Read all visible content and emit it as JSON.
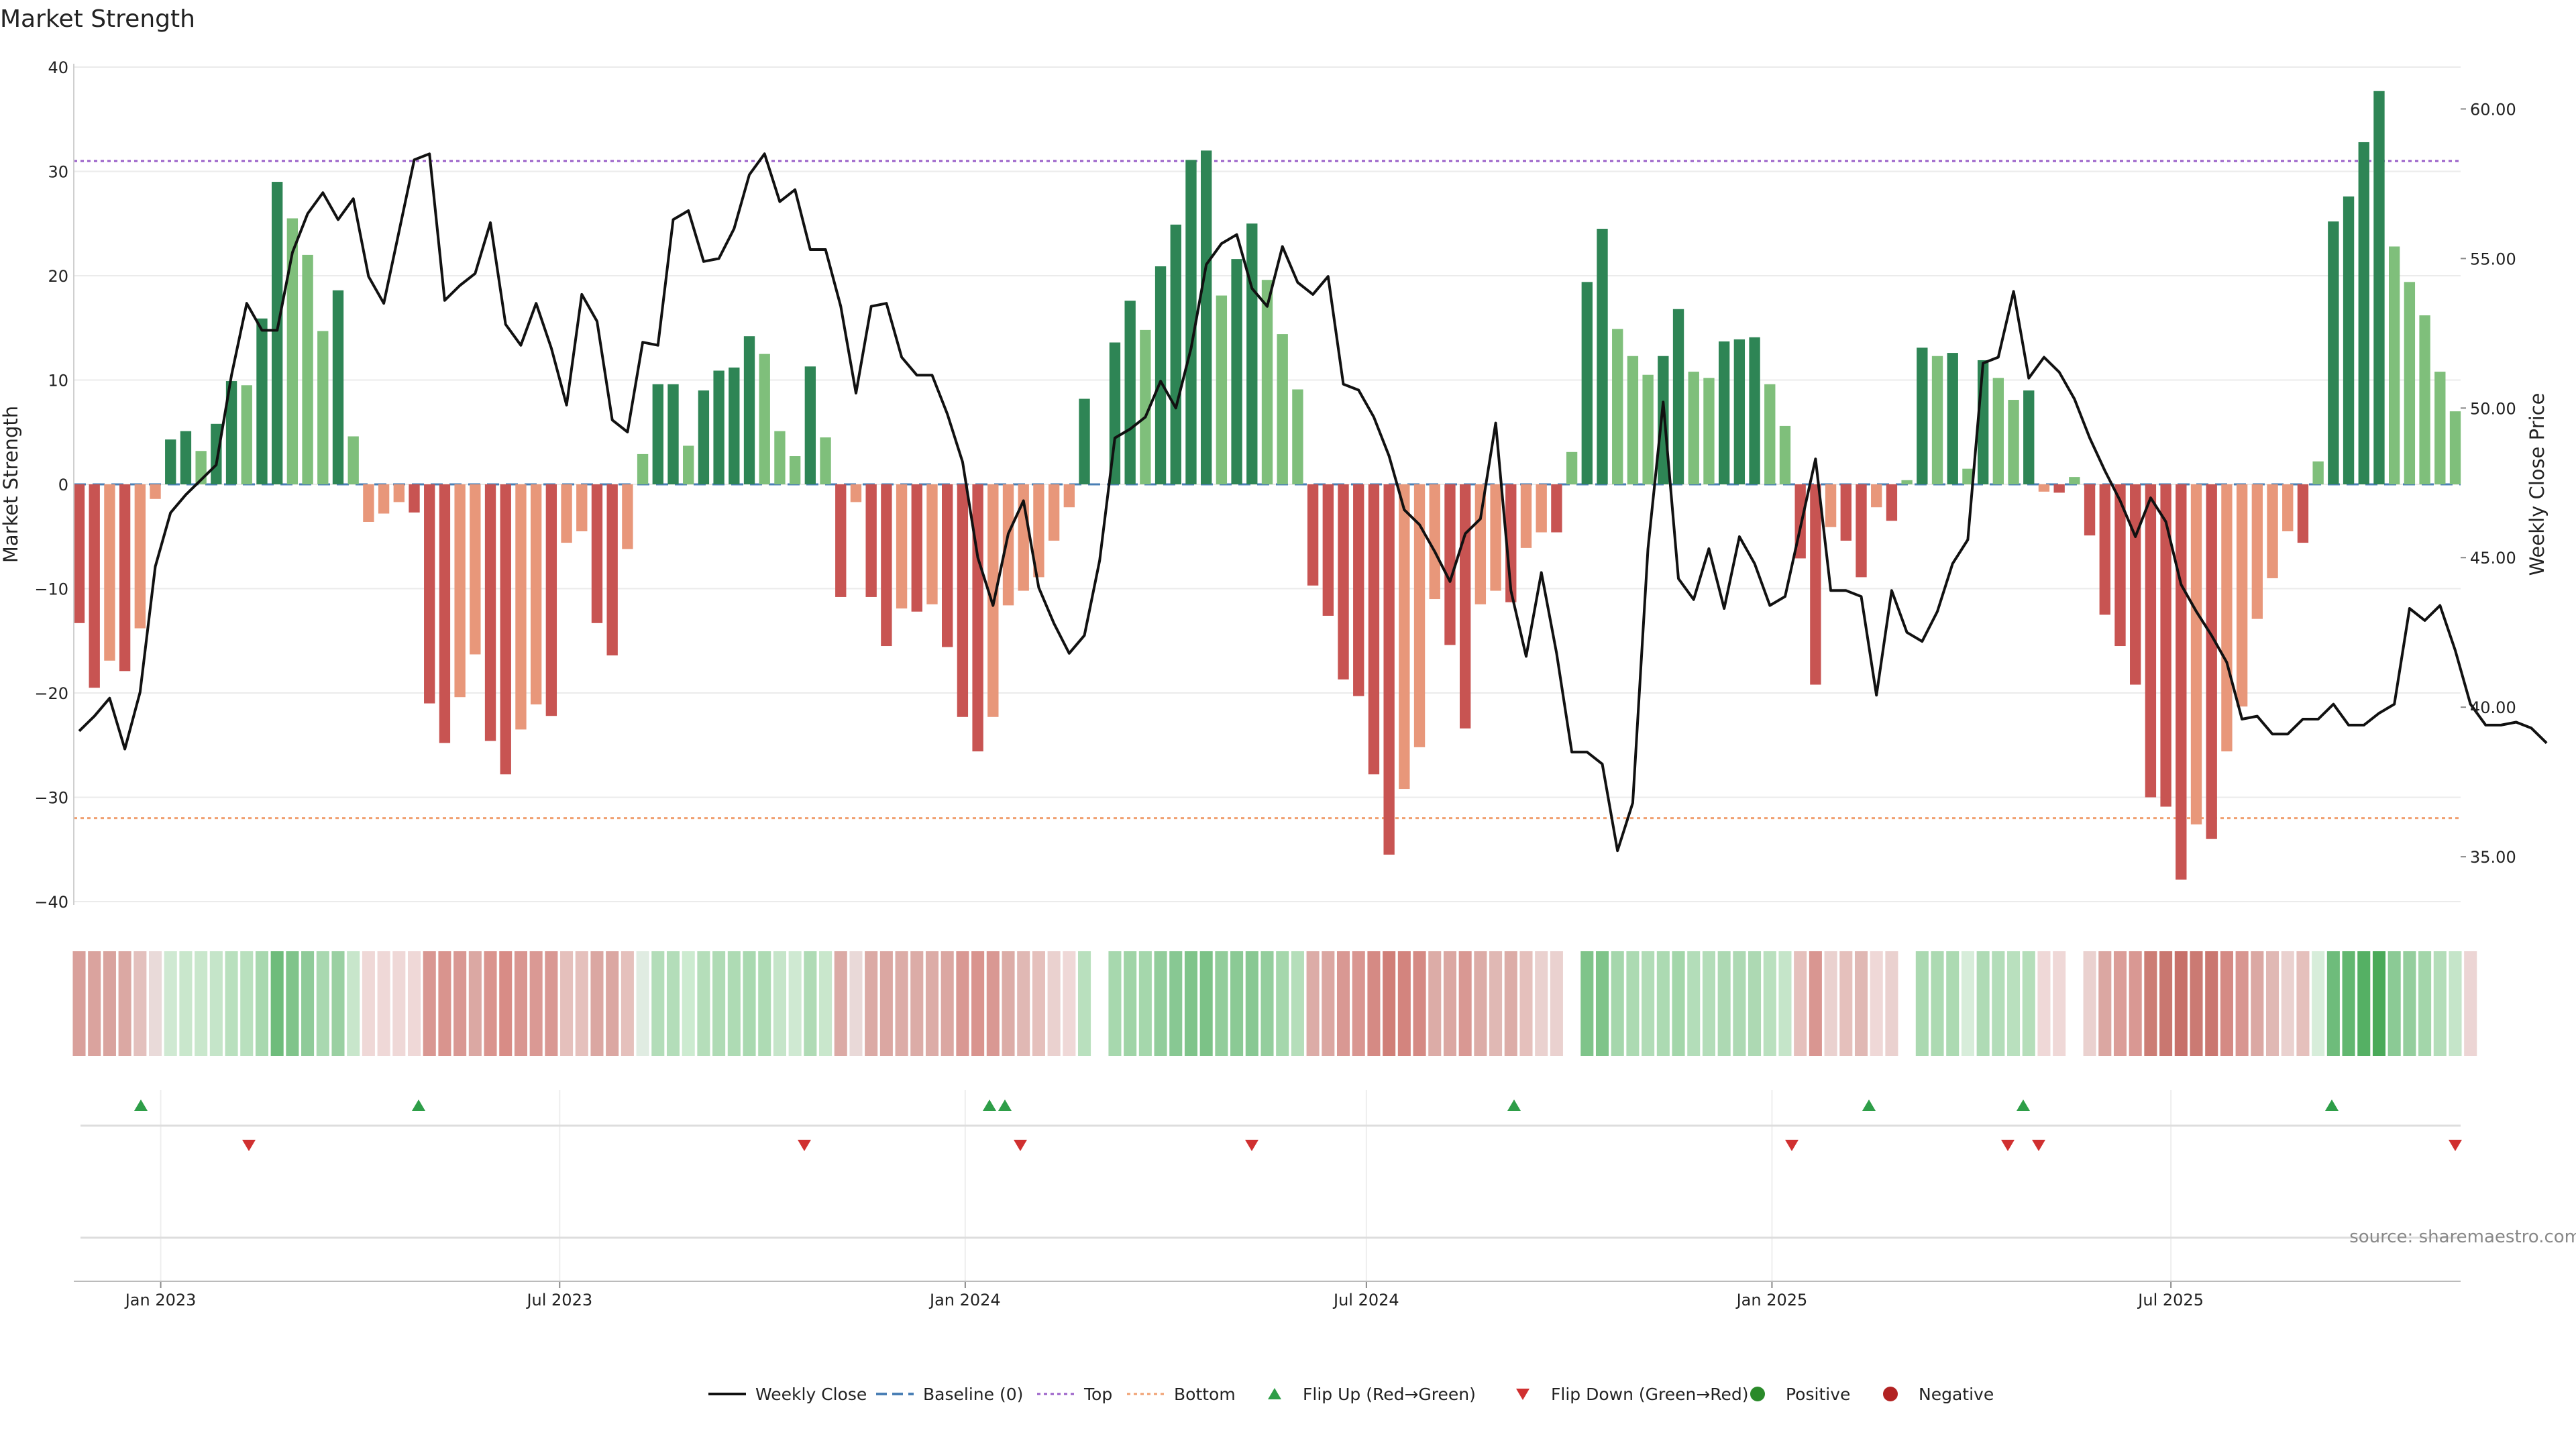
{
  "chart_data": {
    "type": "bar",
    "title": "Market Strength",
    "ylabel": "Market Strength",
    "y2label": "Weekly Close Price",
    "ylim": [
      -40,
      40
    ],
    "y2lim": [
      33.5,
      61.4
    ],
    "yticks": [
      40,
      30,
      20,
      10,
      0,
      -10,
      -20,
      -30,
      -40
    ],
    "ytick_labels": [
      "40",
      "30",
      "20",
      "10",
      "0",
      "−10",
      "−20",
      "−30",
      "−40"
    ],
    "y2ticks": [
      60,
      55,
      50,
      45,
      40,
      35
    ],
    "y2tick_labels": [
      "60.00",
      "55.00",
      "50.00",
      "45.00",
      "40.00",
      "35.00"
    ],
    "x_date_range": [
      "2022-11-25",
      "2025-11-07"
    ],
    "x_step_days": 7,
    "xticks": [
      {
        "date": "2023-01-01",
        "label": "Jan 2023"
      },
      {
        "date": "2023-07-01",
        "label": "Jul 2023"
      },
      {
        "date": "2024-01-01",
        "label": "Jan 2024"
      },
      {
        "date": "2024-07-01",
        "label": "Jul 2024"
      },
      {
        "date": "2025-01-01",
        "label": "Jan 2025"
      },
      {
        "date": "2025-07-01",
        "label": "Jul 2025"
      }
    ],
    "top_level": 31,
    "bottom_level": -32,
    "baseline": 0,
    "strength": [
      -13.3,
      -19.5,
      -16.9,
      -17.9,
      -13.8,
      -1.4,
      4.3,
      5.1,
      3.2,
      5.8,
      9.9,
      9.5,
      15.9,
      29,
      25.5,
      22,
      14.7,
      18.6,
      4.6,
      -3.6,
      -2.8,
      -1.7,
      -2.7,
      -21,
      -24.8,
      -20.4,
      -16.3,
      -24.6,
      -27.8,
      -23.5,
      -21.1,
      -22.2,
      -5.6,
      -4.5,
      -13.3,
      -16.4,
      -6.2,
      2.9,
      9.6,
      9.6,
      3.7,
      9,
      10.9,
      11.2,
      14.2,
      12.5,
      5.1,
      2.7,
      11.3,
      4.5,
      -10.8,
      -1.7,
      -10.8,
      -15.5,
      -11.9,
      -12.2,
      -11.5,
      -15.6,
      -22.3,
      -25.6,
      -22.3,
      -11.6,
      -10.2,
      -8.9,
      -5.4,
      -2.2,
      8.2,
      0,
      13.6,
      17.6,
      14.8,
      20.9,
      24.9,
      31.1,
      32,
      18.1,
      21.6,
      25,
      19.6,
      14.4,
      9.1,
      -9.7,
      -12.6,
      -18.7,
      -20.3,
      -27.8,
      -35.5,
      -29.2,
      -25.2,
      -11,
      -15.4,
      -23.4,
      -11.5,
      -10.2,
      -11.3,
      -6.1,
      -4.6,
      -4.6,
      3.1,
      19.4,
      24.5,
      14.9,
      12.3,
      10.5,
      12.3,
      16.8,
      10.8,
      10.2,
      13.7,
      13.9,
      14.1,
      9.6,
      5.6,
      -7.1,
      -19.2,
      -4.1,
      -5.4,
      -8.9,
      -2.2,
      -3.5,
      0.4,
      13.1,
      12.3,
      12.6,
      1.5,
      11.9,
      10.2,
      8.1,
      9,
      -0.7,
      -0.8,
      0.7,
      -4.9,
      -12.5,
      -15.5,
      -19.2,
      -30,
      -30.9,
      -37.9,
      -32.6,
      -34,
      -25.6,
      -21.3,
      -12.9,
      -9,
      -4.5,
      -5.6,
      2.2,
      25.2,
      27.6,
      32.8,
      37.7,
      22.8,
      19.4,
      16.2,
      10.8,
      7
    ],
    "close": [
      39.2,
      39.7,
      40.3,
      38.6,
      40.5,
      44.7,
      46.5,
      47.1,
      47.6,
      48.1,
      51.1,
      53.5,
      52.6,
      52.6,
      55.2,
      56.5,
      57.2,
      56.3,
      57,
      54.4,
      53.5,
      55.9,
      58.3,
      58.5,
      53.6,
      54.1,
      54.5,
      56.2,
      52.8,
      52.1,
      53.5,
      52,
      50.1,
      53.8,
      52.9,
      49.6,
      49.2,
      52.2,
      52.1,
      56.3,
      56.6,
      54.9,
      55,
      56,
      57.8,
      58.5,
      56.9,
      57.3,
      55.3,
      55.3,
      53.4,
      50.5,
      53.4,
      53.5,
      51.7,
      51.1,
      51.1,
      49.8,
      48.2,
      45,
      43.4,
      45.8,
      46.9,
      44,
      42.8,
      41.8,
      42.4,
      44.9,
      49,
      49.3,
      49.7,
      50.9,
      50,
      52,
      54.8,
      55.5,
      55.8,
      54,
      53.4,
      55.4,
      54.2,
      53.8,
      54.4,
      50.8,
      50.6,
      49.7,
      48.4,
      46.6,
      46.1,
      45.2,
      44.2,
      45.8,
      46.3,
      49.5,
      43.9,
      41.7,
      44.5,
      41.8,
      38.5,
      38.5,
      38.1,
      35.2,
      36.8,
      45.3,
      50.2,
      44.3,
      43.6,
      45.3,
      43.3,
      45.7,
      44.8,
      43.4,
      43.7,
      46,
      48.3,
      43.9,
      43.9,
      43.7,
      40.4,
      43.9,
      42.5,
      42.2,
      43.2,
      44.8,
      45.6,
      51.5,
      51.7,
      53.9,
      51,
      51.7,
      51.2,
      50.3,
      49,
      47.9,
      46.9,
      45.7,
      47,
      46.2,
      44.1,
      43.2,
      42.4,
      41.5,
      39.6,
      39.7,
      39.1,
      39.1,
      39.6,
      39.6,
      40.1,
      39.4,
      39.4,
      39.8,
      40.1,
      43.3,
      42.9,
      43.4,
      41.9,
      40.1,
      39.4,
      39.4,
      39.5,
      39.3,
      38.8
    ],
    "heat_colors": [
      "#d9a09b",
      "#daa39e",
      "#d9a39e",
      "#dba8a3",
      "#e3c0bd",
      "#e9dad9",
      "#cfe9d2",
      "#c9e7cc",
      "#c9e7cc",
      "#c5e5c9",
      "#b9e0be",
      "#b9e0be",
      "#a8d8af",
      "#6ebc7b",
      "#80c48b",
      "#8fcb99",
      "#a9d8b0",
      "#9ad0a2",
      "#c8e6cb",
      "#efd8d7",
      "#efd8d7",
      "#efd8d7",
      "#efd8d7",
      "#d99792",
      "#d9948e",
      "#d99893",
      "#dba8a3",
      "#da948e",
      "#d88c86",
      "#d99691",
      "#da9994",
      "#d99893",
      "#e5c0bc",
      "#e5c0bc",
      "#dba7a2",
      "#dba7a2",
      "#e5c0bc",
      "#e0ece2",
      "#b3ddb9",
      "#b3ddb9",
      "#ccebd0",
      "#b5deba",
      "#afdbb5",
      "#aedbb4",
      "#a9d9b0",
      "#aedbb4",
      "#c5e5c9",
      "#cfe9d2",
      "#afdbb5",
      "#c9e7cc",
      "#dbaaa5",
      "#e9d9d8",
      "#dbaaa5",
      "#dba7a2",
      "#dcaca7",
      "#dcaca7",
      "#dcaca7",
      "#dba7a2",
      "#d99893",
      "#d9948e",
      "#d99893",
      "#dcaca7",
      "#e0b8b4",
      "#e5c0bc",
      "#ead1cf",
      "#efd8d7",
      "#b9e0be",
      "#ffffff",
      "#a7d8ae",
      "#9fd4a6",
      "#a5d7ac",
      "#92cd9b",
      "#88c893",
      "#7fc48a",
      "#7cc287",
      "#92cd9b",
      "#8bca95",
      "#88c893",
      "#94ce9d",
      "#a5d7ac",
      "#b5deba",
      "#dcaca7",
      "#dba7a2",
      "#d99893",
      "#d99691",
      "#d58a84",
      "#d07f78",
      "#d3847e",
      "#d58a84",
      "#dcaca7",
      "#dba7a2",
      "#d99893",
      "#dcaca7",
      "#e0b8b4",
      "#dcaca7",
      "#e5c0bc",
      "#ead1cf",
      "#ead1cf",
      "#ffffff",
      "#7fc48a",
      "#7fc48a",
      "#a5d7ac",
      "#acdab2",
      "#b1dcb7",
      "#acdab2",
      "#a3d6aa",
      "#b3ddb9",
      "#b3ddb9",
      "#add9b3",
      "#add9b3",
      "#add9b3",
      "#b9e0be",
      "#c5e5c9",
      "#e5c0bc",
      "#d99691",
      "#ead1cf",
      "#e5c0bc",
      "#e0b8b4",
      "#efd8d7",
      "#ead1cf",
      "#ffffff",
      "#abd9b1",
      "#acdab2",
      "#acdab2",
      "#d7edda",
      "#afdbb5",
      "#b3ddb9",
      "#b9e0be",
      "#b5deba",
      "#efd8d7",
      "#efd8d7",
      "#ffffff",
      "#ead1cf",
      "#dba7a2",
      "#db9d98",
      "#d99893",
      "#cc7c74",
      "#c97770",
      "#c7706a",
      "#cb7a73",
      "#ca7770",
      "#d58a84",
      "#d89691",
      "#dba8a3",
      "#e0b8b4",
      "#ead1cf",
      "#e5c0bc",
      "#d7edda",
      "#6ebc7b",
      "#62b770",
      "#55b064",
      "#4aaa59",
      "#8bca95",
      "#94ce9d",
      "#a3d6aa",
      "#b3ddb9",
      "#c5e5c9",
      "#ecd5d4"
    ],
    "flip_up_dates": [
      "2022-12-23",
      "2023-04-28",
      "2024-01-12",
      "2024-01-19",
      "2024-09-06",
      "2025-02-14",
      "2025-04-25",
      "2025-09-12"
    ],
    "flip_down_dates": [
      "2023-02-10",
      "2023-10-20",
      "2024-01-26",
      "2024-05-10",
      "2025-01-10",
      "2025-04-18",
      "2025-05-02",
      "2025-11-07"
    ],
    "source": "source: sharemaestro.com",
    "legend": [
      {
        "label": "Weekly Close",
        "kind": "line",
        "color": "#111111"
      },
      {
        "label": "Baseline (0)",
        "kind": "dash",
        "color": "#4a7fb5"
      },
      {
        "label": "Top",
        "kind": "dot",
        "color": "#9a5fc8"
      },
      {
        "label": "Bottom",
        "kind": "dot",
        "color": "#f0a070"
      },
      {
        "label": "Flip Up (Red→Green)",
        "kind": "up",
        "color": "#2e9e48"
      },
      {
        "label": "Flip Down (Green→Red)",
        "kind": "down",
        "color": "#d03030"
      },
      {
        "label": "Positive",
        "kind": "circle",
        "color": "#2a8a2a"
      },
      {
        "label": "Negative",
        "kind": "circle",
        "color": "#b22222"
      }
    ],
    "colors": {
      "pos_strong": "#2e8555",
      "pos_weak": "#7fbf7b",
      "neg_strong": "#c85452",
      "neg_weak": "#e8977a",
      "close_line": "#111111",
      "baseline": "#4a7fb5",
      "top": "#9a5fc8",
      "bottom": "#f0a070",
      "up": "#2e9e48",
      "down": "#d03030"
    }
  }
}
